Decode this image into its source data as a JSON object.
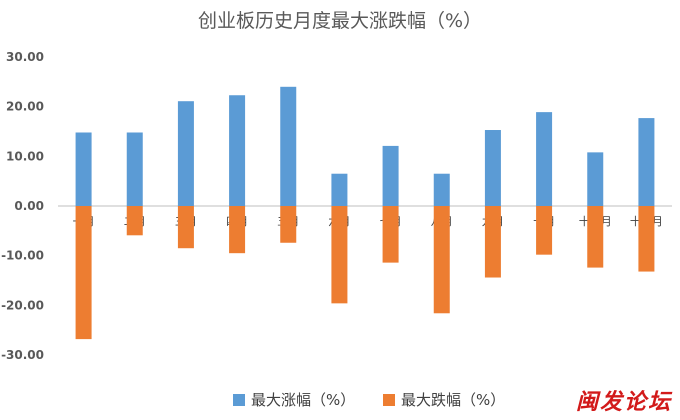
{
  "chart_data": {
    "type": "bar",
    "title": "创业板历史月度最大涨跌幅（%）",
    "categories": [
      "一月",
      "二月",
      "三月",
      "四月",
      "五月",
      "六月",
      "七月",
      "八月",
      "九月",
      "十月",
      "十一月",
      "十二月"
    ],
    "series": [
      {
        "name": "最大涨幅（%）",
        "color": "#5b9bd5",
        "values": [
          14.8,
          14.8,
          21.1,
          22.3,
          24.0,
          6.5,
          12.1,
          6.5,
          15.3,
          18.9,
          10.8,
          17.7
        ]
      },
      {
        "name": "最大跌幅（%）",
        "color": "#ed7d31",
        "values": [
          -26.8,
          -5.9,
          -8.5,
          -9.5,
          -7.4,
          -19.6,
          -11.4,
          -21.6,
          -14.4,
          -9.8,
          -12.4,
          -13.2
        ]
      }
    ],
    "y_ticks": [
      "30.00",
      "20.00",
      "10.00",
      "0.00",
      "-10.00",
      "-20.00",
      "-30.00"
    ],
    "ylim": [
      -30,
      30
    ],
    "grid": false,
    "legend_position": "bottom"
  },
  "watermark": "闽发论坛"
}
